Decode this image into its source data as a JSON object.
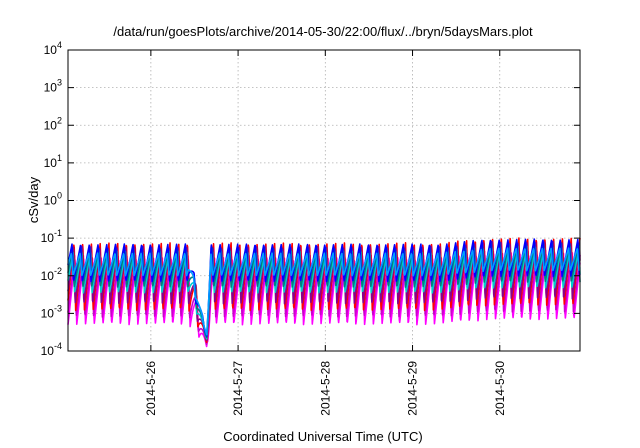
{
  "chart_data": {
    "type": "line",
    "title": "/data/run/goesPlots/archive/2014-05-30/22:00/flux/../bryn/5daysMars.plot",
    "xlabel": "Coordinated Universal Time (UTC)",
    "ylabel": "cSv/day",
    "yscale": "log",
    "ylim": [
      0.0001,
      10000
    ],
    "xlim": [
      25.05,
      30.92
    ],
    "y_ticks": [
      {
        "value": 0.0001,
        "base": "10",
        "exp": "-4"
      },
      {
        "value": 0.001,
        "base": "10",
        "exp": "-3"
      },
      {
        "value": 0.01,
        "base": "10",
        "exp": "-2"
      },
      {
        "value": 0.1,
        "base": "10",
        "exp": "-1"
      },
      {
        "value": 1,
        "base": "10",
        "exp": "0"
      },
      {
        "value": 10,
        "base": "10",
        "exp": "1"
      },
      {
        "value": 100,
        "base": "10",
        "exp": "2"
      },
      {
        "value": 1000,
        "base": "10",
        "exp": "3"
      },
      {
        "value": 10000,
        "base": "10",
        "exp": "4"
      }
    ],
    "x_ticks": [
      {
        "value": 26,
        "label": "2014-5-26"
      },
      {
        "value": 27,
        "label": "2014-5-27"
      },
      {
        "value": 28,
        "label": "2014-5-28"
      },
      {
        "value": 29,
        "label": "2014-5-29"
      },
      {
        "value": 30,
        "label": "2014-5-30"
      }
    ],
    "grid": true,
    "legend": "none",
    "cycle_period_days": 0.1,
    "series": [
      {
        "color": "#ff00ff",
        "peak": 0.03,
        "trough": 0.0005
      },
      {
        "color": "#cc00cc",
        "peak": 0.035,
        "trough": 0.0008
      },
      {
        "color": "#ff0000",
        "peak": 0.075,
        "trough": 0.0012
      },
      {
        "color": "#8b008b",
        "peak": 0.06,
        "trough": 0.0018
      },
      {
        "color": "#00cccc",
        "peak": 0.045,
        "trough": 0.0035
      },
      {
        "color": "#008080",
        "peak": 0.055,
        "trough": 0.005
      },
      {
        "color": "#0000ff",
        "peak": 0.07,
        "trough": 0.007
      },
      {
        "color": "#00a0ff",
        "peak": 0.04,
        "trough": 0.01
      }
    ],
    "dip": {
      "start": 26.43,
      "minimum": 26.64,
      "end": 26.69,
      "min_value": 0.00013
    }
  }
}
